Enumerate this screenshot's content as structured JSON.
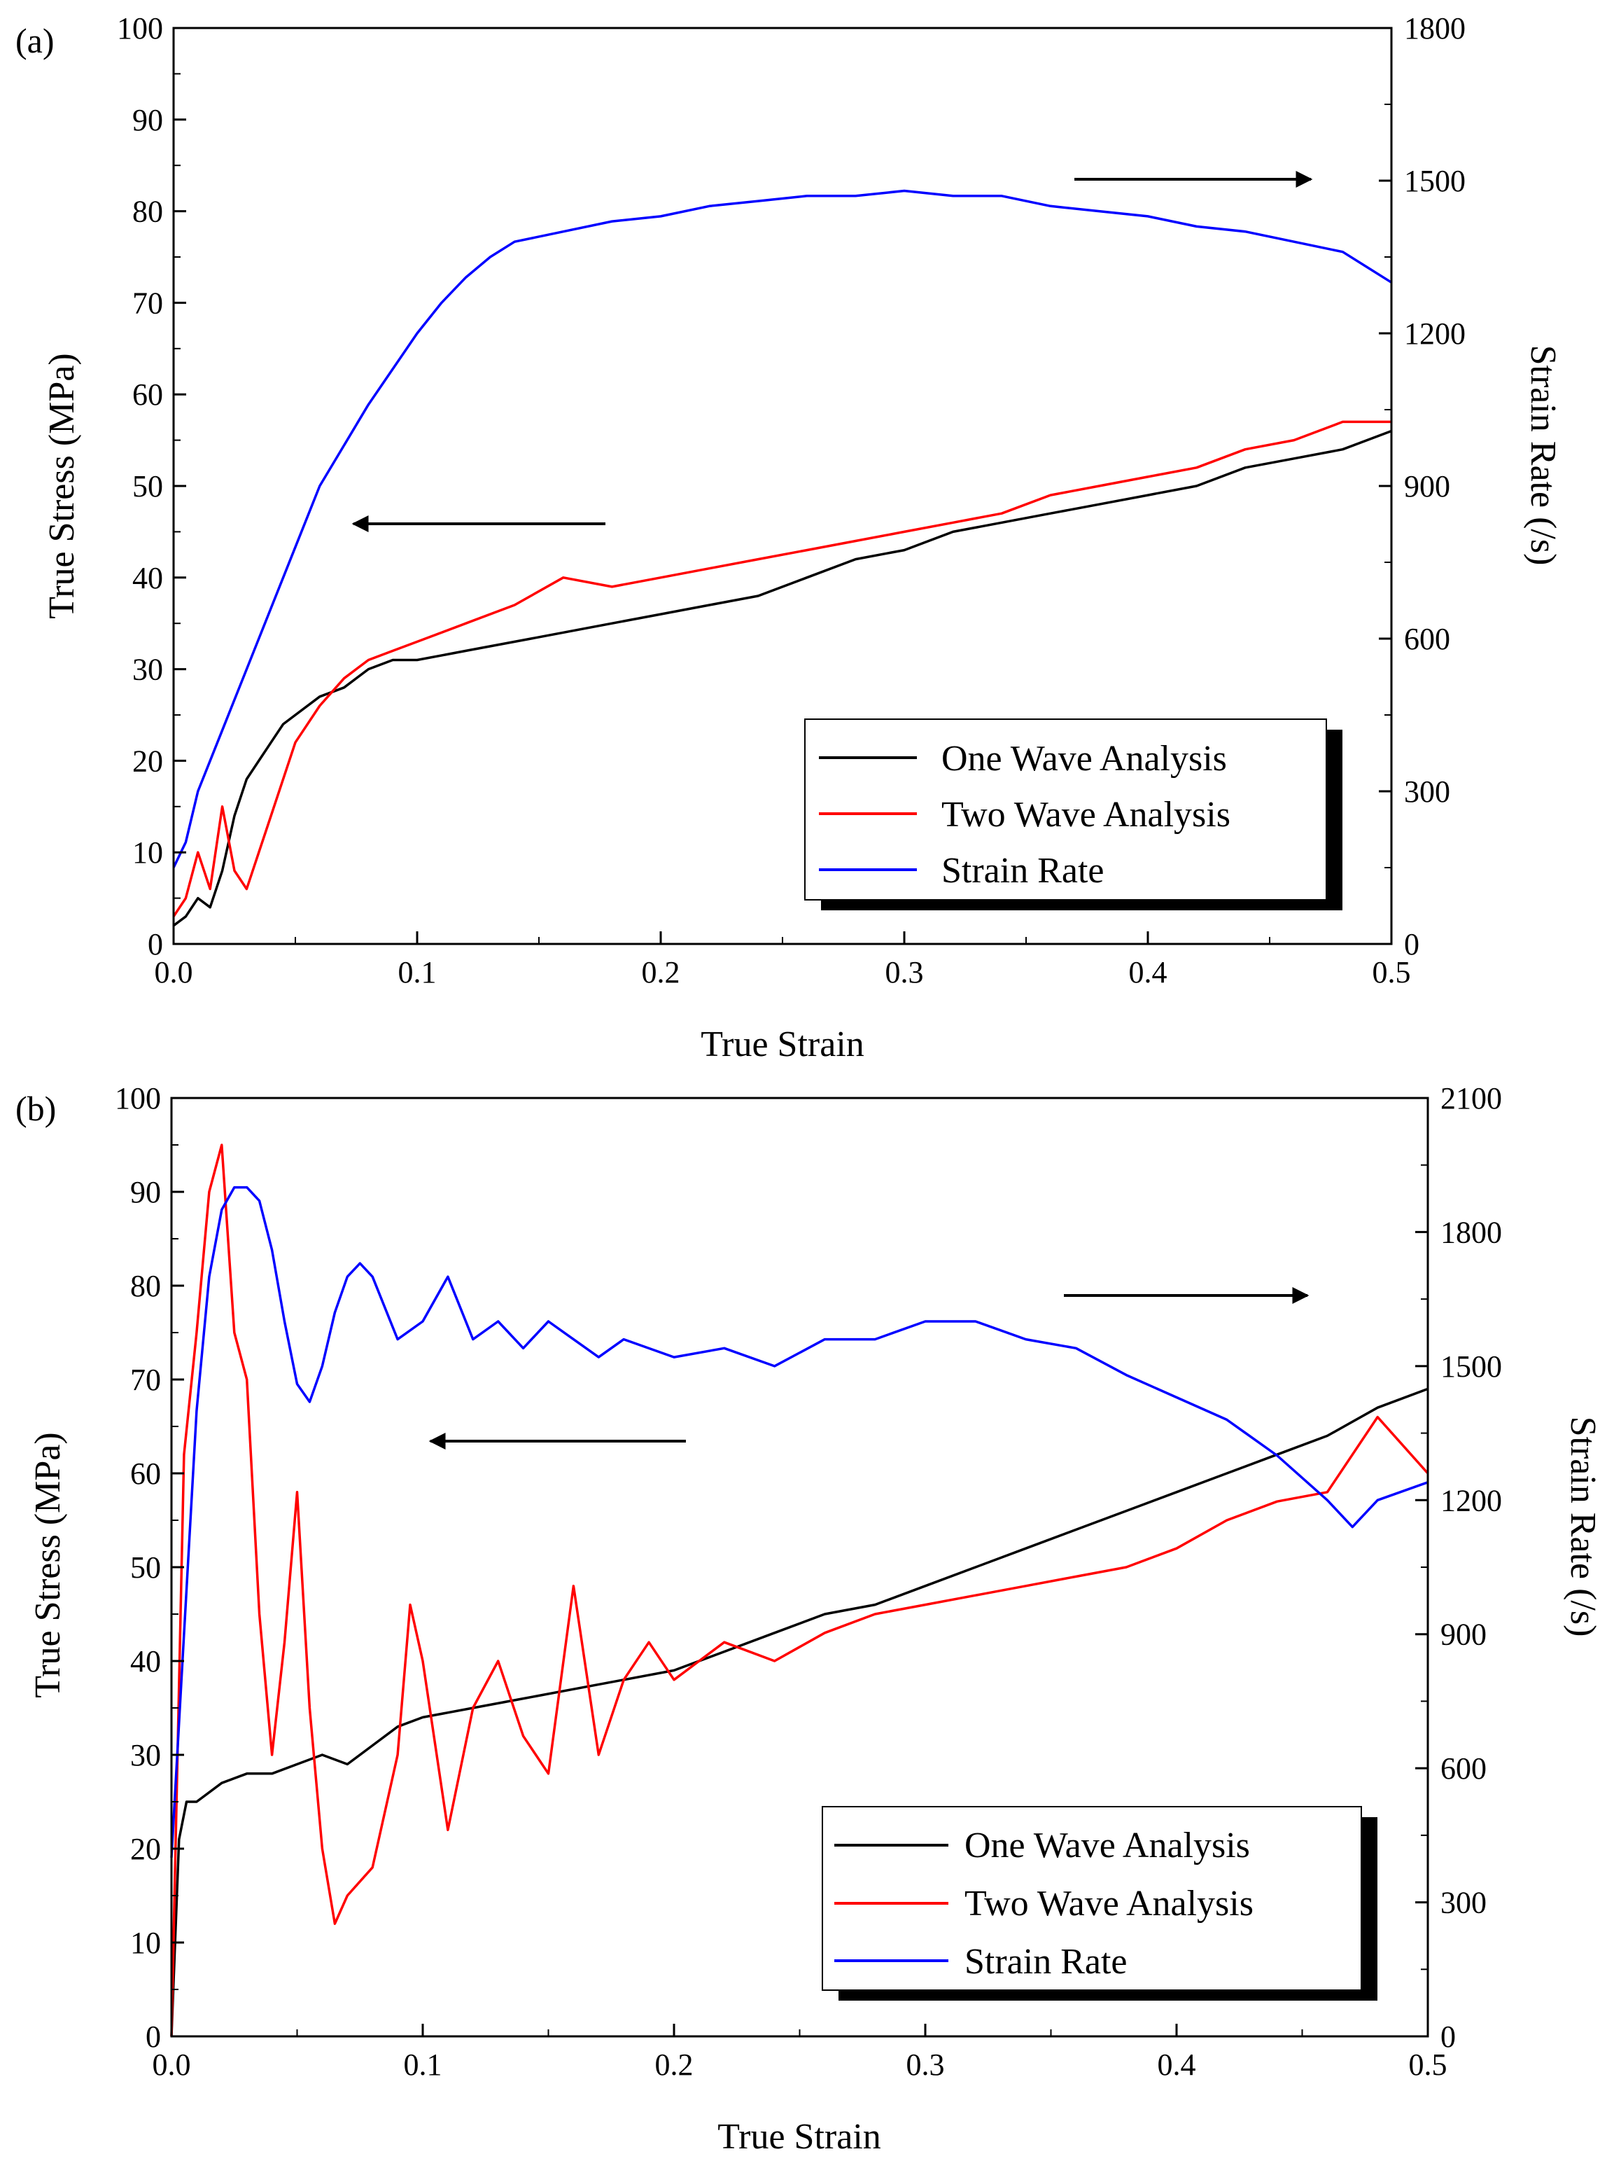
{
  "colors": {
    "one": "#000000",
    "two": "#ff0000",
    "rate": "#0000ff"
  },
  "chart_data": [
    {
      "type": "line",
      "panel_label": "(a)",
      "xlabel": "True Strain",
      "ylabel": "True Stress (MPa)",
      "y2label": "Strain Rate (/s)",
      "xlim": [
        0,
        0.5
      ],
      "ylim": [
        0,
        100
      ],
      "y2lim": [
        0,
        1800
      ],
      "xticks": [
        "0.0",
        "0.1",
        "0.2",
        "0.3",
        "0.4",
        "0.5"
      ],
      "yticks": [
        "0",
        "10",
        "20",
        "30",
        "40",
        "50",
        "60",
        "70",
        "80",
        "90",
        "100"
      ],
      "y2ticks": [
        "0",
        "300",
        "600",
        "900",
        "1200",
        "1500",
        "1800"
      ],
      "legend": {
        "position": "bottom-right",
        "entries": [
          "One Wave Analysis",
          "Two Wave Analysis",
          "Strain Rate"
        ]
      },
      "annotations": [
        "arrow pointing left toward stress axis",
        "arrow pointing right toward strain rate axis"
      ],
      "series": [
        {
          "name": "One Wave Analysis",
          "axis": "left",
          "color": "#000000",
          "x": [
            0,
            0.005,
            0.01,
            0.015,
            0.02,
            0.025,
            0.03,
            0.035,
            0.04,
            0.045,
            0.05,
            0.06,
            0.07,
            0.08,
            0.09,
            0.1,
            0.12,
            0.14,
            0.16,
            0.18,
            0.2,
            0.22,
            0.24,
            0.26,
            0.28,
            0.3,
            0.32,
            0.34,
            0.36,
            0.38,
            0.4,
            0.42,
            0.44,
            0.46,
            0.48,
            0.5
          ],
          "y": [
            2,
            3,
            5,
            4,
            8,
            14,
            18,
            20,
            22,
            24,
            25,
            27,
            28,
            30,
            31,
            31,
            32,
            33,
            34,
            35,
            36,
            37,
            38,
            40,
            42,
            43,
            45,
            46,
            47,
            48,
            49,
            50,
            52,
            53,
            54,
            56
          ]
        },
        {
          "name": "Two Wave Analysis",
          "axis": "left",
          "color": "#ff0000",
          "x": [
            0,
            0.005,
            0.01,
            0.015,
            0.02,
            0.025,
            0.03,
            0.035,
            0.04,
            0.045,
            0.05,
            0.06,
            0.07,
            0.08,
            0.09,
            0.1,
            0.12,
            0.14,
            0.16,
            0.18,
            0.2,
            0.22,
            0.24,
            0.26,
            0.28,
            0.3,
            0.32,
            0.34,
            0.36,
            0.38,
            0.4,
            0.42,
            0.44,
            0.46,
            0.48,
            0.5
          ],
          "y": [
            3,
            5,
            10,
            6,
            15,
            8,
            6,
            10,
            14,
            18,
            22,
            26,
            29,
            31,
            32,
            33,
            35,
            37,
            40,
            39,
            40,
            41,
            42,
            43,
            44,
            45,
            46,
            47,
            49,
            50,
            51,
            52,
            54,
            55,
            57,
            57
          ]
        },
        {
          "name": "Strain Rate",
          "axis": "right",
          "color": "#0000ff",
          "x": [
            0,
            0.005,
            0.01,
            0.02,
            0.03,
            0.04,
            0.05,
            0.06,
            0.07,
            0.08,
            0.09,
            0.1,
            0.11,
            0.12,
            0.13,
            0.14,
            0.16,
            0.18,
            0.2,
            0.22,
            0.24,
            0.26,
            0.28,
            0.3,
            0.32,
            0.34,
            0.36,
            0.38,
            0.4,
            0.42,
            0.44,
            0.46,
            0.48,
            0.5
          ],
          "y": [
            150,
            200,
            300,
            420,
            540,
            660,
            780,
            900,
            980,
            1060,
            1130,
            1200,
            1260,
            1310,
            1350,
            1380,
            1400,
            1420,
            1430,
            1450,
            1460,
            1470,
            1470,
            1480,
            1470,
            1470,
            1450,
            1440,
            1430,
            1410,
            1400,
            1380,
            1360,
            1300
          ]
        }
      ]
    },
    {
      "type": "line",
      "panel_label": "(b)",
      "xlabel": "True Strain",
      "ylabel": "True Stress (MPa)",
      "y2label": "Strain Rate (/s)",
      "xlim": [
        0,
        0.5
      ],
      "ylim": [
        0,
        100
      ],
      "y2lim": [
        0,
        2100
      ],
      "xticks": [
        "0.0",
        "0.1",
        "0.2",
        "0.3",
        "0.4",
        "0.5"
      ],
      "yticks": [
        "0",
        "10",
        "20",
        "30",
        "40",
        "50",
        "60",
        "70",
        "80",
        "90",
        "100"
      ],
      "y2ticks": [
        "0",
        "300",
        "600",
        "900",
        "1200",
        "1500",
        "1800",
        "2100"
      ],
      "legend": {
        "position": "bottom-right",
        "entries": [
          "One Wave Analysis",
          "Two Wave Analysis",
          "Strain Rate"
        ]
      },
      "annotations": [
        "arrow pointing left toward stress axis",
        "arrow pointing right toward strain rate axis"
      ],
      "series": [
        {
          "name": "One Wave Analysis",
          "axis": "left",
          "color": "#000000",
          "x": [
            0,
            0.003,
            0.006,
            0.01,
            0.02,
            0.03,
            0.04,
            0.05,
            0.06,
            0.07,
            0.08,
            0.09,
            0.1,
            0.12,
            0.14,
            0.16,
            0.18,
            0.2,
            0.22,
            0.24,
            0.26,
            0.28,
            0.3,
            0.32,
            0.34,
            0.36,
            0.38,
            0.4,
            0.42,
            0.44,
            0.46,
            0.48,
            0.5
          ],
          "y": [
            0,
            21,
            25,
            25,
            27,
            28,
            28,
            29,
            30,
            29,
            31,
            33,
            34,
            35,
            36,
            37,
            38,
            39,
            41,
            43,
            45,
            46,
            48,
            50,
            52,
            54,
            56,
            58,
            60,
            62,
            64,
            67,
            69
          ]
        },
        {
          "name": "Two Wave Analysis",
          "axis": "left",
          "color": "#ff0000",
          "x": [
            0,
            0.005,
            0.01,
            0.015,
            0.02,
            0.025,
            0.03,
            0.035,
            0.04,
            0.045,
            0.05,
            0.055,
            0.06,
            0.065,
            0.07,
            0.08,
            0.09,
            0.095,
            0.1,
            0.11,
            0.12,
            0.13,
            0.14,
            0.15,
            0.16,
            0.17,
            0.18,
            0.19,
            0.2,
            0.22,
            0.24,
            0.26,
            0.28,
            0.3,
            0.32,
            0.34,
            0.36,
            0.38,
            0.4,
            0.42,
            0.44,
            0.46,
            0.48,
            0.5
          ],
          "y": [
            0,
            62,
            75,
            90,
            95,
            75,
            70,
            45,
            30,
            42,
            58,
            35,
            20,
            12,
            15,
            18,
            30,
            46,
            40,
            22,
            35,
            40,
            32,
            28,
            48,
            30,
            38,
            42,
            38,
            42,
            40,
            43,
            45,
            46,
            47,
            48,
            49,
            50,
            52,
            55,
            57,
            58,
            66,
            60
          ]
        },
        {
          "name": "Strain Rate",
          "axis": "right",
          "color": "#0000ff",
          "x": [
            0,
            0.005,
            0.01,
            0.015,
            0.02,
            0.025,
            0.03,
            0.035,
            0.04,
            0.045,
            0.05,
            0.055,
            0.06,
            0.065,
            0.07,
            0.075,
            0.08,
            0.09,
            0.1,
            0.11,
            0.12,
            0.13,
            0.14,
            0.15,
            0.16,
            0.17,
            0.18,
            0.2,
            0.22,
            0.24,
            0.26,
            0.28,
            0.3,
            0.32,
            0.34,
            0.36,
            0.38,
            0.4,
            0.42,
            0.44,
            0.46,
            0.47,
            0.48,
            0.5
          ],
          "y": [
            400,
            900,
            1400,
            1700,
            1850,
            1900,
            1900,
            1870,
            1760,
            1600,
            1460,
            1420,
            1500,
            1620,
            1700,
            1730,
            1700,
            1560,
            1600,
            1700,
            1560,
            1600,
            1540,
            1600,
            1560,
            1520,
            1560,
            1520,
            1540,
            1500,
            1560,
            1560,
            1600,
            1600,
            1560,
            1540,
            1480,
            1430,
            1380,
            1300,
            1200,
            1140,
            1200,
            1240
          ]
        }
      ]
    }
  ]
}
